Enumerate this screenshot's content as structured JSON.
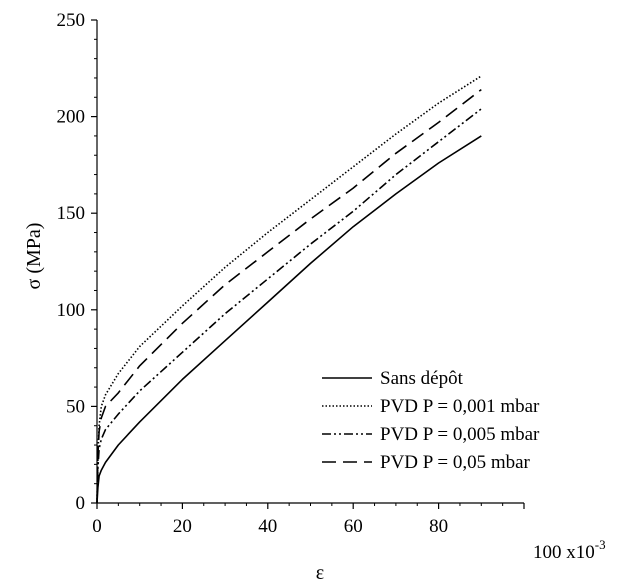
{
  "chart_data": {
    "type": "line",
    "xlabel": "ε",
    "ylabel": "σ (MPa)",
    "x_multiplier_label": "100 x10",
    "x_multiplier_exp": "-3",
    "xlim": [
      0,
      100
    ],
    "ylim": [
      0,
      250
    ],
    "x_ticks": [
      "0",
      "20",
      "40",
      "60",
      "80"
    ],
    "y_ticks": [
      "0",
      "50",
      "100",
      "150",
      "200",
      "250"
    ],
    "grid": false,
    "legend_position": "bottom-right",
    "series": [
      {
        "name": "Sans dépôt",
        "style": "solid",
        "color": "#000000",
        "x": [
          0,
          0.2,
          0.5,
          1,
          2,
          5,
          10,
          20,
          30,
          40,
          50,
          60,
          70,
          80,
          90
        ],
        "y": [
          0,
          8,
          14,
          17,
          21,
          30,
          42,
          64,
          84,
          104,
          124,
          143,
          160,
          176,
          190
        ]
      },
      {
        "name": "PVD P = 0,001 mbar",
        "style": "dotted",
        "color": "#000000",
        "x": [
          0,
          0.2,
          0.5,
          1,
          2,
          5,
          10,
          20,
          30,
          40,
          50,
          60,
          70,
          80,
          90
        ],
        "y": [
          0,
          25,
          40,
          50,
          56,
          67,
          81,
          102,
          122,
          140,
          157,
          174,
          191,
          207,
          221
        ]
      },
      {
        "name": "PVD P = 0,005 mbar",
        "style": "dash-dot-dot",
        "color": "#000000",
        "x": [
          0,
          0.2,
          0.5,
          1,
          2,
          5,
          10,
          20,
          30,
          40,
          50,
          60,
          70,
          80,
          90
        ],
        "y": [
          0,
          18,
          28,
          33,
          38,
          46,
          58,
          78,
          98,
          116,
          134,
          151,
          170,
          187,
          204
        ]
      },
      {
        "name": "PVD P = 0,05 mbar",
        "style": "dashed",
        "color": "#000000",
        "x": [
          0,
          0.2,
          0.5,
          1,
          2,
          5,
          10,
          20,
          30,
          40,
          50,
          60,
          70,
          80,
          90
        ],
        "y": [
          0,
          25,
          37,
          44,
          50,
          57,
          71,
          93,
          113,
          130,
          147,
          163,
          181,
          197,
          214
        ]
      }
    ]
  }
}
